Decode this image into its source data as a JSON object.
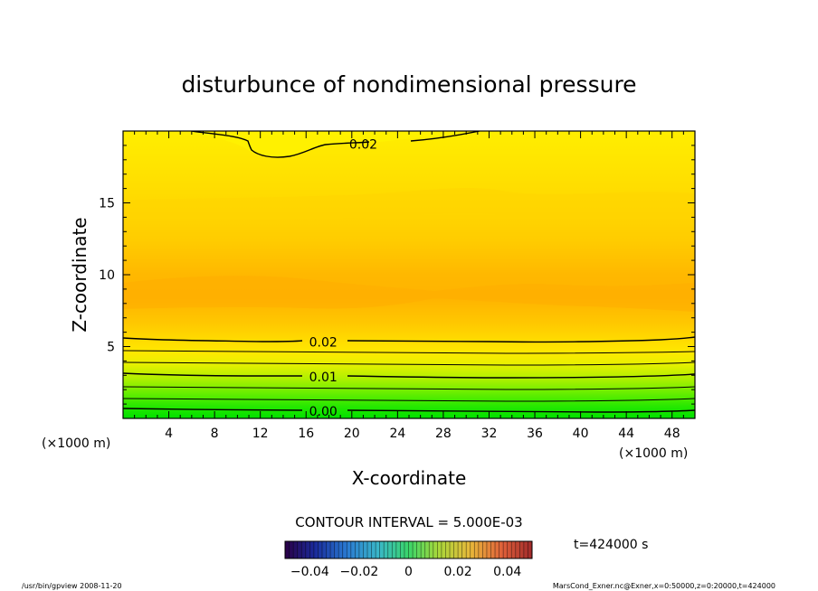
{
  "chart_data": {
    "type": "contour",
    "title": "disturbunce of nondimensional pressure",
    "xlabel": "X-coordinate",
    "ylabel": "Z-coordinate",
    "x_unit": "(×1000 m)",
    "y_unit": "(×1000 m)",
    "xlim": [
      0,
      50
    ],
    "ylim": [
      0,
      20
    ],
    "x_ticks": [
      4,
      8,
      12,
      16,
      20,
      24,
      28,
      32,
      36,
      40,
      44,
      48
    ],
    "y_ticks": [
      5,
      10,
      15
    ],
    "contour_labels": [
      {
        "x": 21,
        "z": 19.1,
        "text": "0.02"
      },
      {
        "x": 17.5,
        "z": 5.3,
        "text": "0.02"
      },
      {
        "x": 17.5,
        "z": 2.9,
        "text": "0.01"
      },
      {
        "x": 17.5,
        "z": 0.5,
        "text": "0.00"
      }
    ],
    "contour_interval_label": "CONTOUR INTERVAL = 5.000E-03",
    "colorbar": {
      "ticks": [
        "−0.04",
        "−0.02",
        "0",
        "0.02",
        "0.04"
      ],
      "range": [
        -0.05,
        0.05
      ]
    },
    "time_label": "t=424000 s"
  },
  "footer": {
    "left": "/usr/bin/gpview   2008-11-20",
    "right": "MarsCond_Exner.nc@Exner,x=0:50000,z=0:20000,t=424000"
  },
  "colors": {
    "green": "#00e600",
    "yellow": "#ffe600",
    "orange": "#ffb400"
  }
}
